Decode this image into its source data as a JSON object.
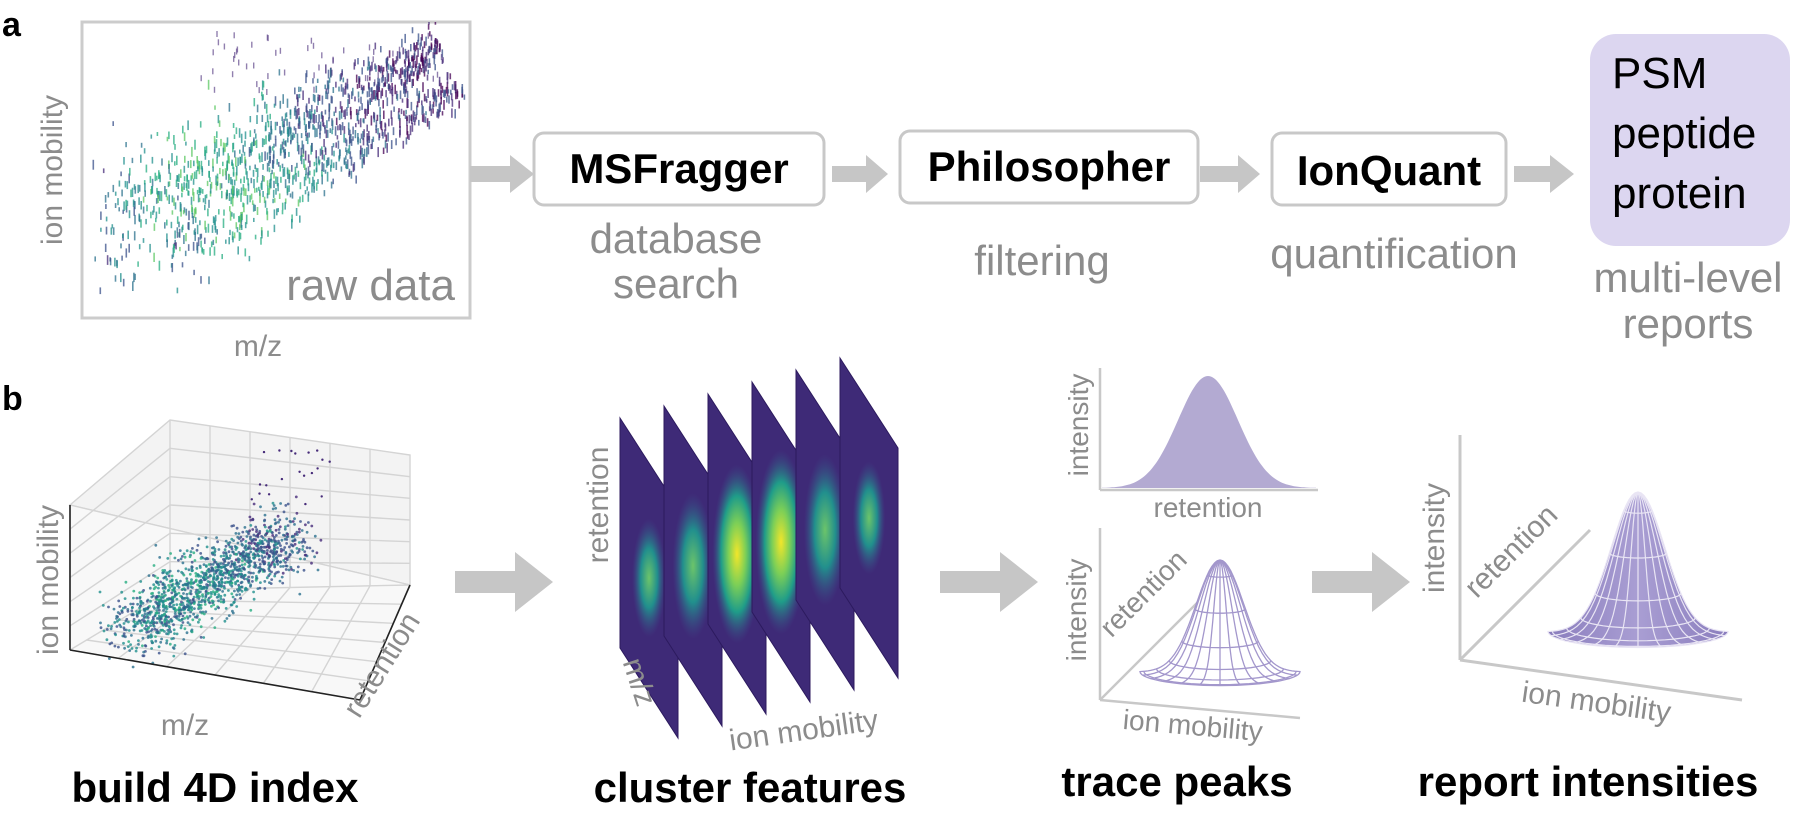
{
  "colors": {
    "gray_text": "#8c8c8c",
    "box_border": "#c8c8c8",
    "arrow": "#c6c6c6",
    "report_fill": "#dcd6f0",
    "peak_fill": "#b3aad2",
    "surface_fill": "#9c8fc7",
    "surface_line": "#7d6fb5",
    "viridis_dark": "#3b1f6e",
    "viridis_mid": "#2a8a8a",
    "viridis_yellow": "#f2e62a"
  },
  "panel_a": {
    "letter": "a",
    "plot": {
      "ylabel": "ion mobility",
      "xlabel": "m/z",
      "caption": "raw data"
    },
    "steps": [
      {
        "name": "MSFragger",
        "desc": [
          "database",
          "search"
        ],
        "icon": "box"
      },
      {
        "name": "Philosopher",
        "desc": [
          "filtering"
        ],
        "icon": "box"
      },
      {
        "name": "IonQuant",
        "desc": [
          "quantification"
        ],
        "icon": "box"
      }
    ],
    "report": {
      "lines": [
        "PSM",
        "peptide",
        "protein"
      ],
      "caption": [
        "multi-level",
        "reports"
      ]
    }
  },
  "panel_b": {
    "letter": "b",
    "index": {
      "title": "build 4D index",
      "axes": [
        "ion mobility",
        "m/z",
        "retention"
      ]
    },
    "cluster": {
      "title": "cluster features",
      "axes": [
        "retention",
        "m/z",
        "ion mobility"
      ]
    },
    "trace": {
      "title": "trace peaks",
      "profile_axes": [
        "intensity",
        "retention"
      ],
      "surface_axes": [
        "intensity",
        "retention",
        "ion mobility"
      ]
    },
    "report": {
      "title": "report intensities",
      "axes": [
        "intensity",
        "retention",
        "ion mobility"
      ]
    }
  }
}
